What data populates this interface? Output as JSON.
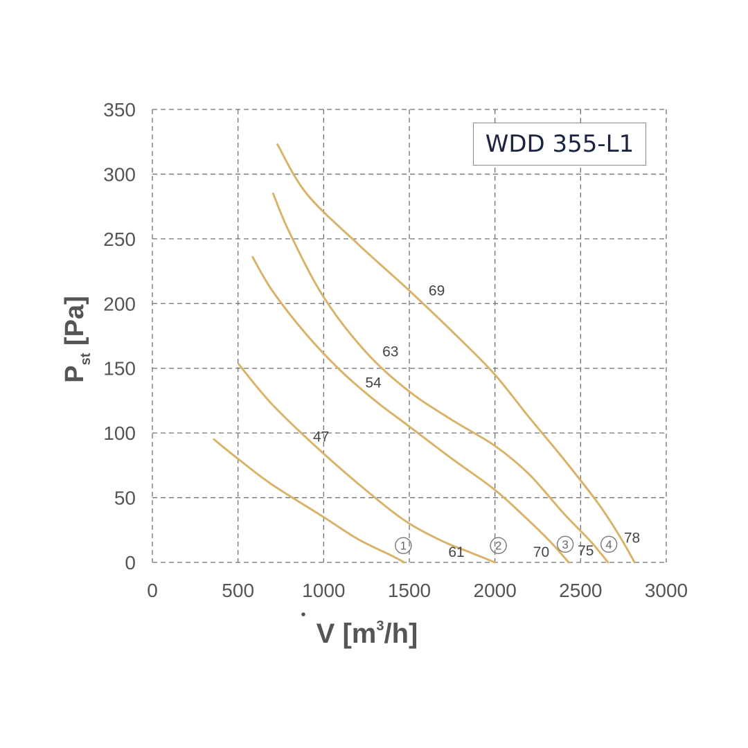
{
  "chart_data": {
    "type": "line",
    "model_label": "WDD 355-L1",
    "x_tick_labels": [
      "0",
      "500",
      "1000",
      "1500",
      "2000",
      "2500",
      "3000"
    ],
    "y_tick_labels": [
      "0",
      "50",
      "100",
      "150",
      "200",
      "250",
      "300",
      "350"
    ],
    "xlim": [
      0,
      3000
    ],
    "ylim": [
      0,
      350
    ],
    "grid": true,
    "colors": {
      "curve": "#d9b36a",
      "grid": "#707070",
      "text": "#555555"
    },
    "series": [
      {
        "points": [
          [
            360,
            95
          ],
          [
            500,
            80
          ],
          [
            700,
            60
          ],
          [
            1000,
            35
          ],
          [
            1200,
            18
          ],
          [
            1400,
            5
          ],
          [
            1470,
            0
          ]
        ]
      },
      {
        "points": [
          [
            505,
            153
          ],
          [
            700,
            122
          ],
          [
            1000,
            84
          ],
          [
            1300,
            50
          ],
          [
            1500,
            30
          ],
          [
            1700,
            16
          ],
          [
            1850,
            8
          ],
          [
            2000,
            0
          ]
        ]
      },
      {
        "points": [
          [
            585,
            236
          ],
          [
            700,
            210
          ],
          [
            900,
            176
          ],
          [
            1100,
            148
          ],
          [
            1300,
            125
          ],
          [
            1500,
            105
          ],
          [
            1750,
            80
          ],
          [
            2000,
            56
          ],
          [
            2200,
            32
          ],
          [
            2330,
            15
          ],
          [
            2430,
            0
          ]
        ]
      },
      {
        "points": [
          [
            705,
            285
          ],
          [
            800,
            255
          ],
          [
            1000,
            205
          ],
          [
            1250,
            162
          ],
          [
            1500,
            132
          ],
          [
            1750,
            110
          ],
          [
            2000,
            90
          ],
          [
            2200,
            68
          ],
          [
            2400,
            38
          ],
          [
            2560,
            16
          ],
          [
            2660,
            0
          ]
        ]
      },
      {
        "points": [
          [
            730,
            323
          ],
          [
            900,
            285
          ],
          [
            1200,
            246
          ],
          [
            1500,
            210
          ],
          [
            1800,
            172
          ],
          [
            2000,
            145
          ],
          [
            2200,
            112
          ],
          [
            2400,
            80
          ],
          [
            2600,
            46
          ],
          [
            2720,
            22
          ],
          [
            2815,
            0
          ]
        ]
      }
    ],
    "curve_labels": [
      {
        "text": "69",
        "x": 1660,
        "y": 210
      },
      {
        "text": "63",
        "x": 1390,
        "y": 163
      },
      {
        "text": "54",
        "x": 1290,
        "y": 139
      },
      {
        "text": "47",
        "x": 985,
        "y": 97
      },
      {
        "text": "61",
        "x": 1775,
        "y": 8
      },
      {
        "text": "70",
        "x": 2270,
        "y": 8
      },
      {
        "text": "75",
        "x": 2530,
        "y": 9
      },
      {
        "text": "78",
        "x": 2800,
        "y": 19
      }
    ],
    "point_markers": [
      {
        "text": "1",
        "x": 1465,
        "y": 13
      },
      {
        "text": "2",
        "x": 2020,
        "y": 13
      },
      {
        "text": "3",
        "x": 2410,
        "y": 14
      },
      {
        "text": "4",
        "x": 2665,
        "y": 14
      }
    ]
  }
}
